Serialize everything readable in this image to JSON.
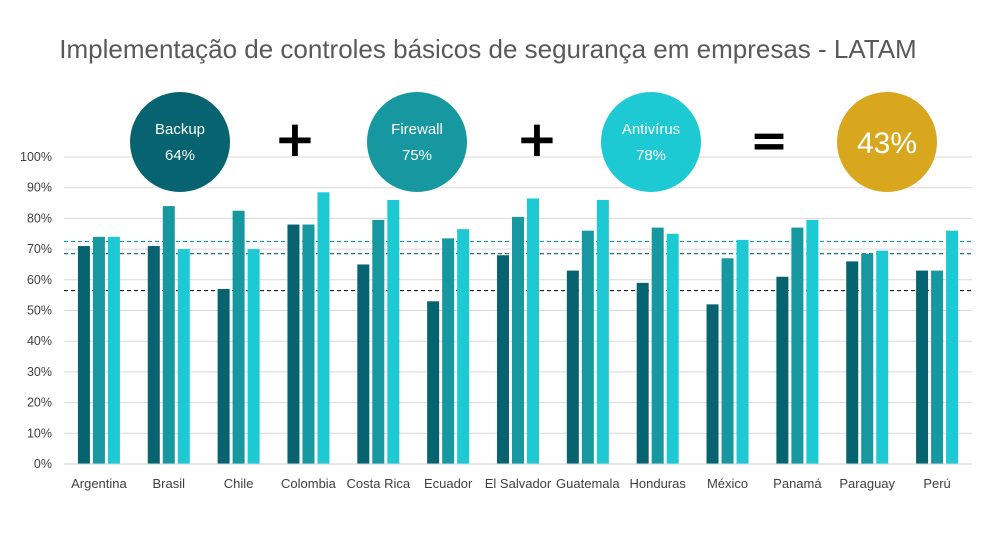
{
  "chart_data": {
    "type": "bar",
    "title": "Implementação de controles básicos de segurança em empresas - LATAM",
    "categories": [
      "Argentina",
      "Brasil",
      "Chile",
      "Colombia",
      "Costa Rica",
      "Ecuador",
      "El Salvador",
      "Guatemala",
      "Honduras",
      "México",
      "Panamá",
      "Paraguay",
      "Perú"
    ],
    "series": [
      {
        "name": "Backup",
        "color": "#07636F",
        "values": [
          71,
          71,
          57,
          78,
          65,
          53,
          68,
          63,
          59,
          52,
          61,
          66,
          63
        ]
      },
      {
        "name": "Firewall",
        "color": "#17979F",
        "values": [
          74,
          84,
          82.5,
          78,
          79.5,
          73.5,
          80.5,
          76,
          77,
          67,
          77,
          68.5,
          63
        ]
      },
      {
        "name": "Antivírus",
        "color": "#1DCAD3",
        "values": [
          74,
          70,
          70,
          88.5,
          86,
          76.5,
          86.5,
          86,
          75,
          73,
          79.5,
          69.5,
          76
        ]
      }
    ],
    "yticks": [
      "0%",
      "10%",
      "20%",
      "30%",
      "40%",
      "50%",
      "60%",
      "70%",
      "80%",
      "90%",
      "100%"
    ],
    "ylim": [
      0,
      100
    ],
    "grid": true,
    "reference_lines": [
      {
        "value": 72.5,
        "color": "#17979F"
      },
      {
        "value": 68.5,
        "color": "#07636F"
      },
      {
        "value": 56.5,
        "color": "#1a1a1a"
      }
    ],
    "summary": {
      "items": [
        {
          "label": "Backup",
          "value": "64%",
          "color": "#07636F"
        },
        {
          "label": "Firewall",
          "value": "75%",
          "color": "#17979F"
        },
        {
          "label": "Antivírus",
          "value": "78%",
          "color": "#1DCAD3"
        }
      ],
      "operators": [
        "+",
        "+",
        "="
      ],
      "result": {
        "value": "43%",
        "color": "#D9A71E"
      }
    }
  }
}
